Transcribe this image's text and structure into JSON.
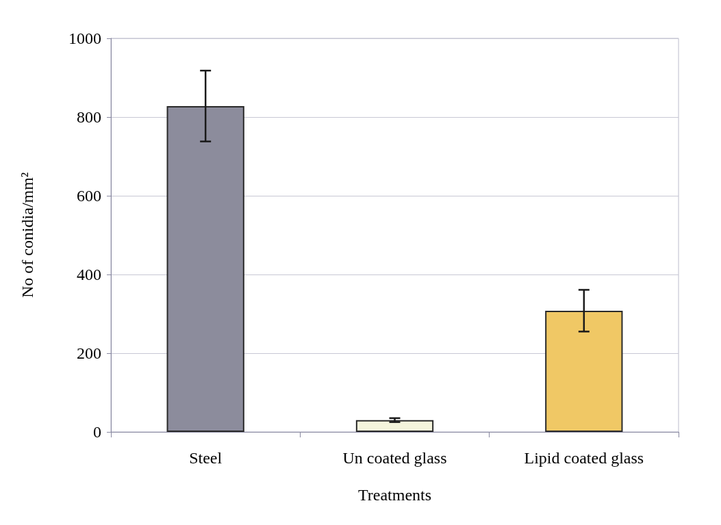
{
  "chart_data": {
    "type": "bar",
    "xlabel": "Treatments",
    "ylabel": "No of conidia/mm²",
    "categories": [
      "Steel",
      "Un coated glass",
      "Lipid coated glass"
    ],
    "values": [
      828,
      30,
      308
    ],
    "colors": [
      "#8c8c9c",
      "#f4f4dc",
      "#f0c865"
    ],
    "errors": [
      90,
      5,
      53
    ],
    "ylim": [
      0,
      1000
    ],
    "yticks": [
      0,
      200,
      400,
      600,
      800,
      1000
    ],
    "grid": "y"
  }
}
